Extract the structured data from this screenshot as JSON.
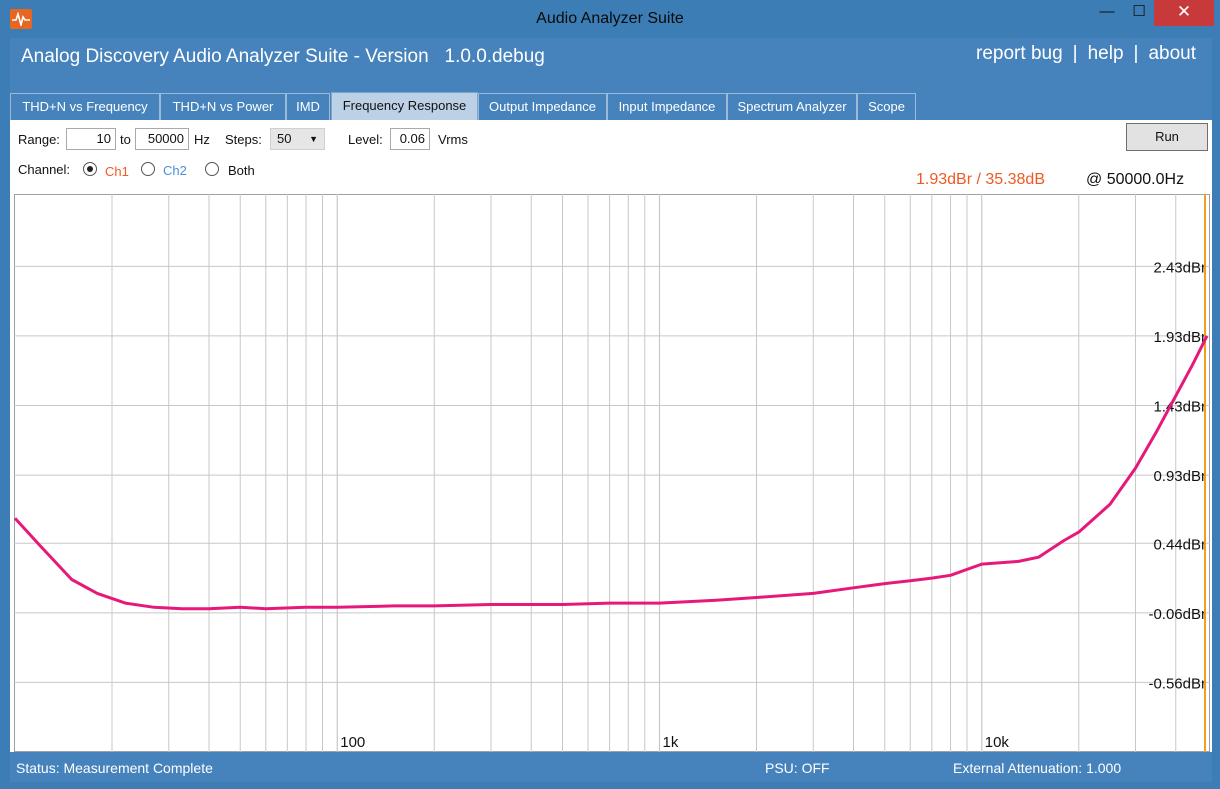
{
  "window": {
    "title": "Audio Analyzer Suite",
    "minimize": "—",
    "maximize": "☐",
    "close": "✕"
  },
  "header": {
    "app_name": "Analog Discovery Audio Analyzer Suite - Version   1.0.0.debug",
    "links": [
      "report bug",
      "help",
      "about"
    ],
    "separator": "|"
  },
  "tabs": [
    {
      "label": "THD+N vs Frequency",
      "active": false
    },
    {
      "label": "THD+N vs Power",
      "active": false
    },
    {
      "label": "IMD",
      "active": false
    },
    {
      "label": "Frequency Response",
      "active": true
    },
    {
      "label": "Output Impedance",
      "active": false
    },
    {
      "label": "Input Impedance",
      "active": false
    },
    {
      "label": "Spectrum Analyzer",
      "active": false
    },
    {
      "label": "Scope",
      "active": false
    }
  ],
  "controls": {
    "range_label": "Range:",
    "range_from": "10",
    "to_label": "to",
    "range_to": "50000",
    "hz_label": "Hz",
    "steps_label": "Steps:",
    "steps_value": "50",
    "level_label": "Level:",
    "level_value": "0.06",
    "vrms_label": "Vrms",
    "run_label": "Run",
    "channel_label": "Channel:",
    "channels": [
      {
        "label": "Ch1",
        "checked": true,
        "color": "#ee5a24"
      },
      {
        "label": "Ch2",
        "checked": false,
        "color": "#4b8fd6"
      },
      {
        "label": "Both",
        "checked": false,
        "color": "#111111"
      }
    ]
  },
  "readout": {
    "value": "1.93dBr / 35.38dB",
    "frequency": "@ 50000.0Hz"
  },
  "colors": {
    "trace": "#e6197a",
    "cursor": "#f0a020",
    "grid": "#c8c8c8"
  },
  "chart_data": {
    "type": "line",
    "x_scale": "log",
    "xlim": [
      10,
      50000
    ],
    "ylim": [
      -1.06,
      2.95
    ],
    "x_tick_values": [
      100,
      1000,
      10000
    ],
    "x_tick_labels": [
      "100",
      "1k",
      "10k"
    ],
    "y_tick_values": [
      2.43,
      1.93,
      1.43,
      0.93,
      0.44,
      -0.06,
      -0.56
    ],
    "y_tick_labels": [
      "2.43dBr",
      "1.93dBr",
      "1.43dBr",
      "0.93dBr",
      "0.44dBr",
      "-0.06dBr",
      "-0.56dBr"
    ],
    "cursor_x": 50000,
    "series": [
      {
        "x": [
          10,
          12,
          15,
          18,
          22,
          27,
          33,
          40,
          50,
          60,
          80,
          100,
          150,
          200,
          300,
          500,
          700,
          1000,
          1500,
          2000,
          3000,
          4000,
          5000,
          6000,
          7000,
          8000,
          10000,
          13000,
          15000,
          18000,
          20000,
          25000,
          30000,
          35000,
          40000,
          45000,
          50000
        ],
        "y": [
          0.62,
          0.42,
          0.18,
          0.08,
          0.01,
          -0.02,
          -0.03,
          -0.03,
          -0.02,
          -0.03,
          -0.02,
          -0.02,
          -0.01,
          -0.01,
          0.0,
          0.0,
          0.01,
          0.01,
          0.03,
          0.05,
          0.08,
          0.12,
          0.15,
          0.17,
          0.19,
          0.21,
          0.29,
          0.31,
          0.34,
          0.46,
          0.52,
          0.72,
          0.98,
          1.25,
          1.5,
          1.72,
          1.93
        ]
      }
    ]
  },
  "status": {
    "text": "Status: Measurement Complete",
    "psu": "PSU: OFF",
    "attenuation": "External Attenuation: 1.000"
  }
}
